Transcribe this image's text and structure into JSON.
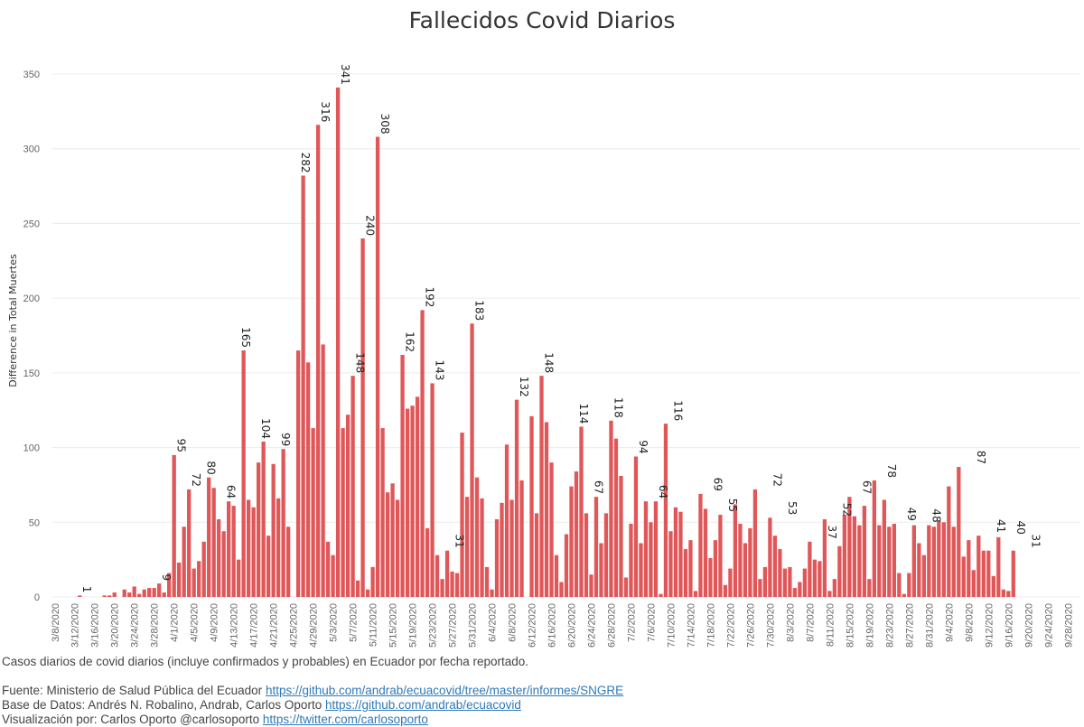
{
  "header": {
    "title": "Fallecidos Covid Diarios"
  },
  "chart_data": {
    "type": "bar",
    "title": "Fallecidos Covid Diarios",
    "ylabel": "Difference in Total Muertes",
    "xlabel": "",
    "ylim": [
      0,
      350
    ],
    "yticks": [
      0,
      50,
      100,
      150,
      200,
      250,
      300,
      350
    ],
    "grid": true,
    "bar_color": "#e05759",
    "start_date": "2020-03-08",
    "end_date": "2020-09-30",
    "xtick_labels": [
      "3/8/2020",
      "3/12/2020",
      "3/16/2020",
      "3/20/2020",
      "3/24/2020",
      "3/28/2020",
      "4/1/2020",
      "4/5/2020",
      "4/9/2020",
      "4/13/2020",
      "4/17/2020",
      "4/21/2020",
      "4/25/2020",
      "4/29/2020",
      "5/3/2020",
      "5/7/2020",
      "5/11/2020",
      "5/15/2020",
      "5/19/2020",
      "5/23/2020",
      "5/27/2020",
      "5/31/2020",
      "6/4/2020",
      "6/8/2020",
      "6/12/2020",
      "6/16/2020",
      "6/20/2020",
      "6/24/2020",
      "6/28/2020",
      "7/2/2020",
      "7/6/2020",
      "7/10/2020",
      "7/14/2020",
      "7/18/2020",
      "7/22/2020",
      "7/26/2020",
      "7/30/2020",
      "8/3/2020",
      "8/7/2020",
      "8/11/2020",
      "8/15/2020",
      "8/19/2020",
      "8/23/2020",
      "8/27/2020",
      "8/31/2020",
      "9/4/2020",
      "9/8/2020",
      "9/12/2020",
      "9/16/2020",
      "9/20/2020",
      "9/24/2020",
      "9/28/2020"
    ],
    "values": [
      0,
      0,
      0,
      0,
      0,
      1,
      0,
      0,
      0,
      0,
      1,
      1,
      3,
      0,
      5,
      3,
      7,
      2,
      5,
      6,
      6,
      9,
      3,
      16,
      95,
      23,
      47,
      72,
      19,
      24,
      37,
      80,
      73,
      52,
      44,
      64,
      61,
      25,
      165,
      65,
      60,
      90,
      104,
      41,
      89,
      66,
      99,
      47,
      0,
      165,
      282,
      157,
      113,
      316,
      169,
      37,
      28,
      341,
      113,
      122,
      148,
      11,
      240,
      5,
      20,
      308,
      113,
      70,
      76,
      65,
      162,
      126,
      128,
      134,
      192,
      46,
      143,
      28,
      12,
      31,
      17,
      16,
      110,
      67,
      183,
      80,
      66,
      20,
      5,
      52,
      63,
      102,
      65,
      132,
      78,
      0,
      121,
      56,
      148,
      117,
      90,
      28,
      10,
      42,
      74,
      84,
      114,
      56,
      15,
      67,
      36,
      56,
      118,
      106,
      81,
      13,
      49,
      94,
      36,
      64,
      50,
      64,
      2,
      116,
      44,
      60,
      57,
      32,
      38,
      4,
      69,
      59,
      26,
      38,
      55,
      8,
      19,
      62,
      49,
      36,
      46,
      72,
      12,
      20,
      53,
      41,
      32,
      19,
      20,
      6,
      10,
      19,
      37,
      25,
      24,
      52,
      4,
      12,
      34,
      55,
      67,
      54,
      48,
      61,
      12,
      78,
      48,
      65,
      47,
      49,
      16,
      2,
      16,
      48,
      36,
      28,
      48,
      47,
      51,
      50,
      74,
      47,
      87,
      27,
      38,
      18,
      41,
      31,
      31,
      14,
      40,
      5,
      4,
      31,
      0,
      0,
      0,
      0,
      0,
      0
    ],
    "data_labels": [
      {
        "date": "3/13/2020",
        "value": 1
      },
      {
        "date": "3/29/2020",
        "value": 9
      },
      {
        "date": "4/1/2020",
        "value": 95
      },
      {
        "date": "4/4/2020",
        "value": 72
      },
      {
        "date": "4/7/2020",
        "value": 80
      },
      {
        "date": "4/11/2020",
        "value": 64
      },
      {
        "date": "4/14/2020",
        "value": 165
      },
      {
        "date": "4/18/2020",
        "value": 104
      },
      {
        "date": "4/22/2020",
        "value": 99
      },
      {
        "date": "4/26/2020",
        "value": 282
      },
      {
        "date": "4/30/2020",
        "value": 316
      },
      {
        "date": "5/4/2020",
        "value": 341
      },
      {
        "date": "5/7/2020",
        "value": 148
      },
      {
        "date": "5/9/2020",
        "value": 240
      },
      {
        "date": "5/12/2020",
        "value": 308
      },
      {
        "date": "5/17/2020",
        "value": 162
      },
      {
        "date": "5/21/2020",
        "value": 192
      },
      {
        "date": "5/23/2020",
        "value": 143
      },
      {
        "date": "5/27/2020",
        "value": 31
      },
      {
        "date": "5/31/2020",
        "value": 183
      },
      {
        "date": "6/9/2020",
        "value": 132
      },
      {
        "date": "6/14/2020",
        "value": 148
      },
      {
        "date": "6/21/2020",
        "value": 114
      },
      {
        "date": "6/24/2020",
        "value": 67
      },
      {
        "date": "6/28/2020",
        "value": 118
      },
      {
        "date": "7/3/2020",
        "value": 94
      },
      {
        "date": "7/7/2020",
        "value": 64
      },
      {
        "date": "7/10/2020",
        "value": 116
      },
      {
        "date": "7/18/2020",
        "value": 69
      },
      {
        "date": "7/21/2020",
        "value": 55
      },
      {
        "date": "7/30/2020",
        "value": 72
      },
      {
        "date": "8/2/2020",
        "value": 53
      },
      {
        "date": "8/10/2020",
        "value": 37
      },
      {
        "date": "8/13/2020",
        "value": 52
      },
      {
        "date": "8/17/2020",
        "value": 67
      },
      {
        "date": "8/22/2020",
        "value": 78
      },
      {
        "date": "8/26/2020",
        "value": 49
      },
      {
        "date": "8/31/2020",
        "value": 48
      },
      {
        "date": "9/9/2020",
        "value": 87
      },
      {
        "date": "9/13/2020",
        "value": 41
      },
      {
        "date": "9/17/2020",
        "value": 40
      },
      {
        "date": "9/20/2020",
        "value": 31
      }
    ]
  },
  "footer": {
    "description": "Casos diarios de covid diarios (incluye confirmados y probables) en Ecuador por fecha reportado.",
    "source_label": "Fuente: Ministerio de Salud Pública del Ecuador",
    "source_url": "https://github.com/andrab/ecuacovid/tree/master/informes/SNGRE",
    "database_label": "Base de Datos: Andrés N. Robalino, Andrab, Carlos Oporto",
    "database_url": "https://github.com/andrab/ecuacovid",
    "viz_label": "Visualización por: Carlos Oporto @carlosoporto",
    "viz_url": "https://twitter.com/carlosoporto"
  }
}
